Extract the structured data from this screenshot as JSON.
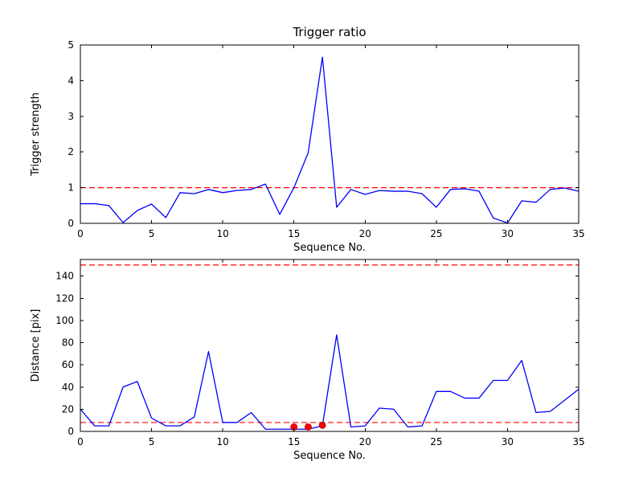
{
  "figure": {
    "background": "#ffffff",
    "axes_color": "#000000",
    "line_color": "#0000ff",
    "threshold_color": "#ff0000",
    "marker_color": "#ff0000"
  },
  "chart_data": [
    {
      "type": "line",
      "title": "Trigger ratio",
      "xlabel": "Sequence No.",
      "ylabel": "Trigger strength",
      "xlim": [
        0,
        35
      ],
      "ylim": [
        0,
        5
      ],
      "xticks": [
        0,
        5,
        10,
        15,
        20,
        25,
        30,
        35
      ],
      "yticks": [
        0,
        1,
        2,
        3,
        4,
        5
      ],
      "grid": false,
      "legend": "none",
      "series": [
        {
          "name": "trigger-strength",
          "color": "#0000ff",
          "x_start": 0,
          "x_step": 1,
          "values": [
            0.55,
            0.55,
            0.5,
            0.02,
            0.36,
            0.54,
            0.16,
            0.86,
            0.83,
            0.95,
            0.86,
            0.92,
            0.95,
            1.1,
            0.25,
            1.0,
            1.98,
            4.66,
            0.45,
            0.95,
            0.81,
            0.92,
            0.9,
            0.9,
            0.83,
            0.45,
            0.95,
            0.97,
            0.9,
            0.15,
            0.01,
            0.63,
            0.59,
            0.95,
            0.99,
            0.9
          ]
        }
      ],
      "hlines": [
        {
          "name": "trigger-threshold",
          "y": 1,
          "color": "#ff0000",
          "style": "dashed"
        }
      ],
      "markers": null
    },
    {
      "type": "line",
      "title": "",
      "xlabel": "Sequence No.",
      "ylabel": "Distance [pix]",
      "xlim": [
        0,
        35
      ],
      "ylim": [
        0,
        155
      ],
      "xticks": [
        0,
        5,
        10,
        15,
        20,
        25,
        30,
        35
      ],
      "yticks": [
        0,
        20,
        40,
        60,
        80,
        100,
        120,
        140
      ],
      "grid": false,
      "legend": "none",
      "series": [
        {
          "name": "distance",
          "color": "#0000ff",
          "x_start": 0,
          "x_step": 1,
          "values": [
            20,
            5,
            5,
            40,
            45,
            12,
            5,
            5,
            13,
            72,
            8,
            8,
            17,
            2,
            2,
            2,
            2,
            5,
            87,
            4,
            5,
            21,
            20,
            4,
            5,
            36,
            36,
            30,
            30,
            46,
            46,
            64,
            17,
            18,
            28,
            38
          ]
        }
      ],
      "hlines": [
        {
          "name": "upper-distance-threshold",
          "y": 150,
          "color": "#ff0000",
          "style": "dashed"
        },
        {
          "name": "lower-distance-threshold",
          "y": 8,
          "color": "#ff0000",
          "style": "dashed"
        }
      ],
      "markers": {
        "name": "trigger-event-markers",
        "color": "#ff0000",
        "points": [
          {
            "x": 15,
            "y": 4
          },
          {
            "x": 16,
            "y": 4
          },
          {
            "x": 17,
            "y": 5.5
          }
        ]
      }
    }
  ]
}
